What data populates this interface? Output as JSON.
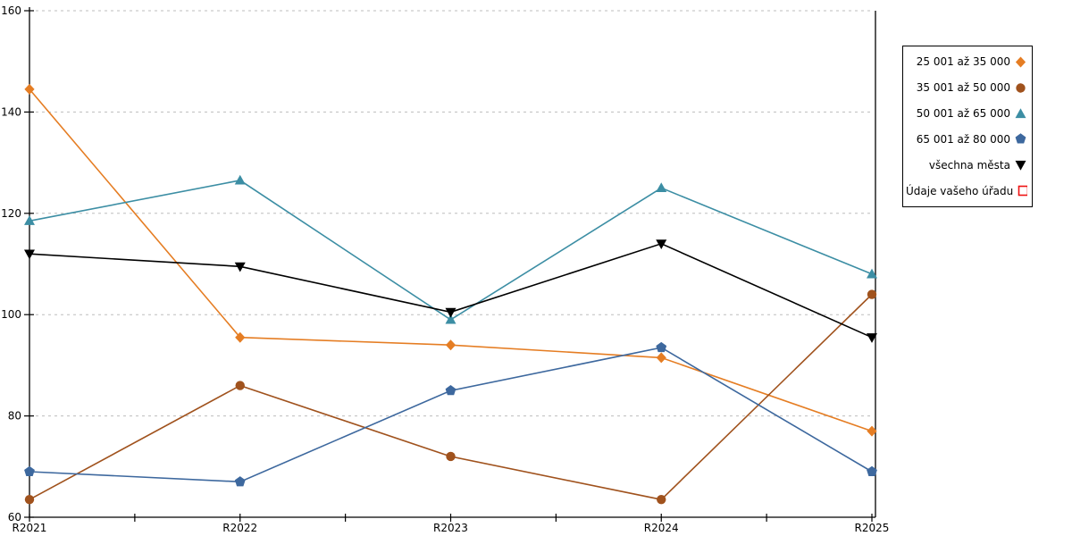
{
  "chart_data": {
    "type": "line",
    "title": "",
    "xlabel": "",
    "ylabel": "",
    "x_labels": [
      "R2021",
      "R2022",
      "R2023",
      "R2024",
      "R2025"
    ],
    "ylim": [
      60,
      160
    ],
    "yticks": [
      60,
      80,
      100,
      120,
      140,
      160
    ],
    "grid": "dotted-horizontal",
    "legend_position": "right-box",
    "series": [
      {
        "name": "25 001 až 35 000",
        "marker": "diamond",
        "color": "#e57d23",
        "values": [
          144.5,
          95.5,
          94,
          91.5,
          77
        ]
      },
      {
        "name": "35 001 až 50 000",
        "marker": "circle",
        "color": "#a0521d",
        "values": [
          63.5,
          86,
          72,
          63.5,
          104
        ]
      },
      {
        "name": "50 001 až 65 000",
        "marker": "triangle-up",
        "color": "#3c8ea4",
        "values": [
          118.5,
          126.5,
          99,
          125,
          108
        ]
      },
      {
        "name": "65 001 až 80 000",
        "marker": "pentagon",
        "color": "#3d689e",
        "values": [
          69,
          67,
          85,
          93.5,
          69
        ]
      },
      {
        "name": "všechna města",
        "marker": "triangle-down",
        "color": "#000000",
        "values": [
          112,
          109.5,
          100.5,
          114,
          95.5
        ]
      },
      {
        "name": "Údaje vašeho úřadu",
        "marker": "square-open",
        "color": "#ee1111",
        "values": []
      }
    ],
    "colors": {
      "grid": "#bdbdbd",
      "axis": "#000000",
      "background": "#ffffff"
    }
  }
}
